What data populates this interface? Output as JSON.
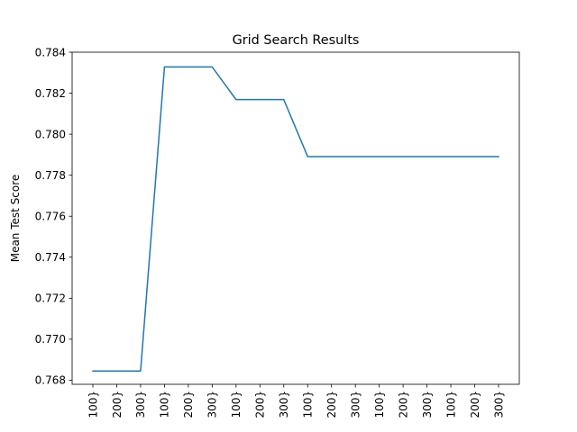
{
  "chart_data": {
    "type": "line",
    "title": "Grid Search Results",
    "xlabel": "",
    "ylabel": "Mean Test Score",
    "x": [
      "100}",
      "200}",
      "300}",
      "100}",
      "200}",
      "300}",
      "100}",
      "200}",
      "300}",
      "100}",
      "200}",
      "300}",
      "100}",
      "200}",
      "300}",
      "100}",
      "200}",
      "300}"
    ],
    "series": [
      {
        "name": "",
        "color": "#1f77b4",
        "values": [
          0.76845,
          0.76845,
          0.76845,
          0.78328,
          0.78328,
          0.78328,
          0.78169,
          0.78169,
          0.78169,
          0.77891,
          0.77891,
          0.77891,
          0.77891,
          0.77891,
          0.77891,
          0.77891,
          0.77891,
          0.77891
        ]
      }
    ],
    "ylim": [
      0.7678,
      0.784
    ],
    "yticks": [
      0.768,
      0.77,
      0.772,
      0.774,
      0.776,
      0.778,
      0.78,
      0.782,
      0.784
    ],
    "ytick_labels": [
      "0.768",
      "0.770",
      "0.772",
      "0.774",
      "0.776",
      "0.778",
      "0.780",
      "0.782",
      "0.784"
    ],
    "grid": false,
    "legend": "none"
  }
}
